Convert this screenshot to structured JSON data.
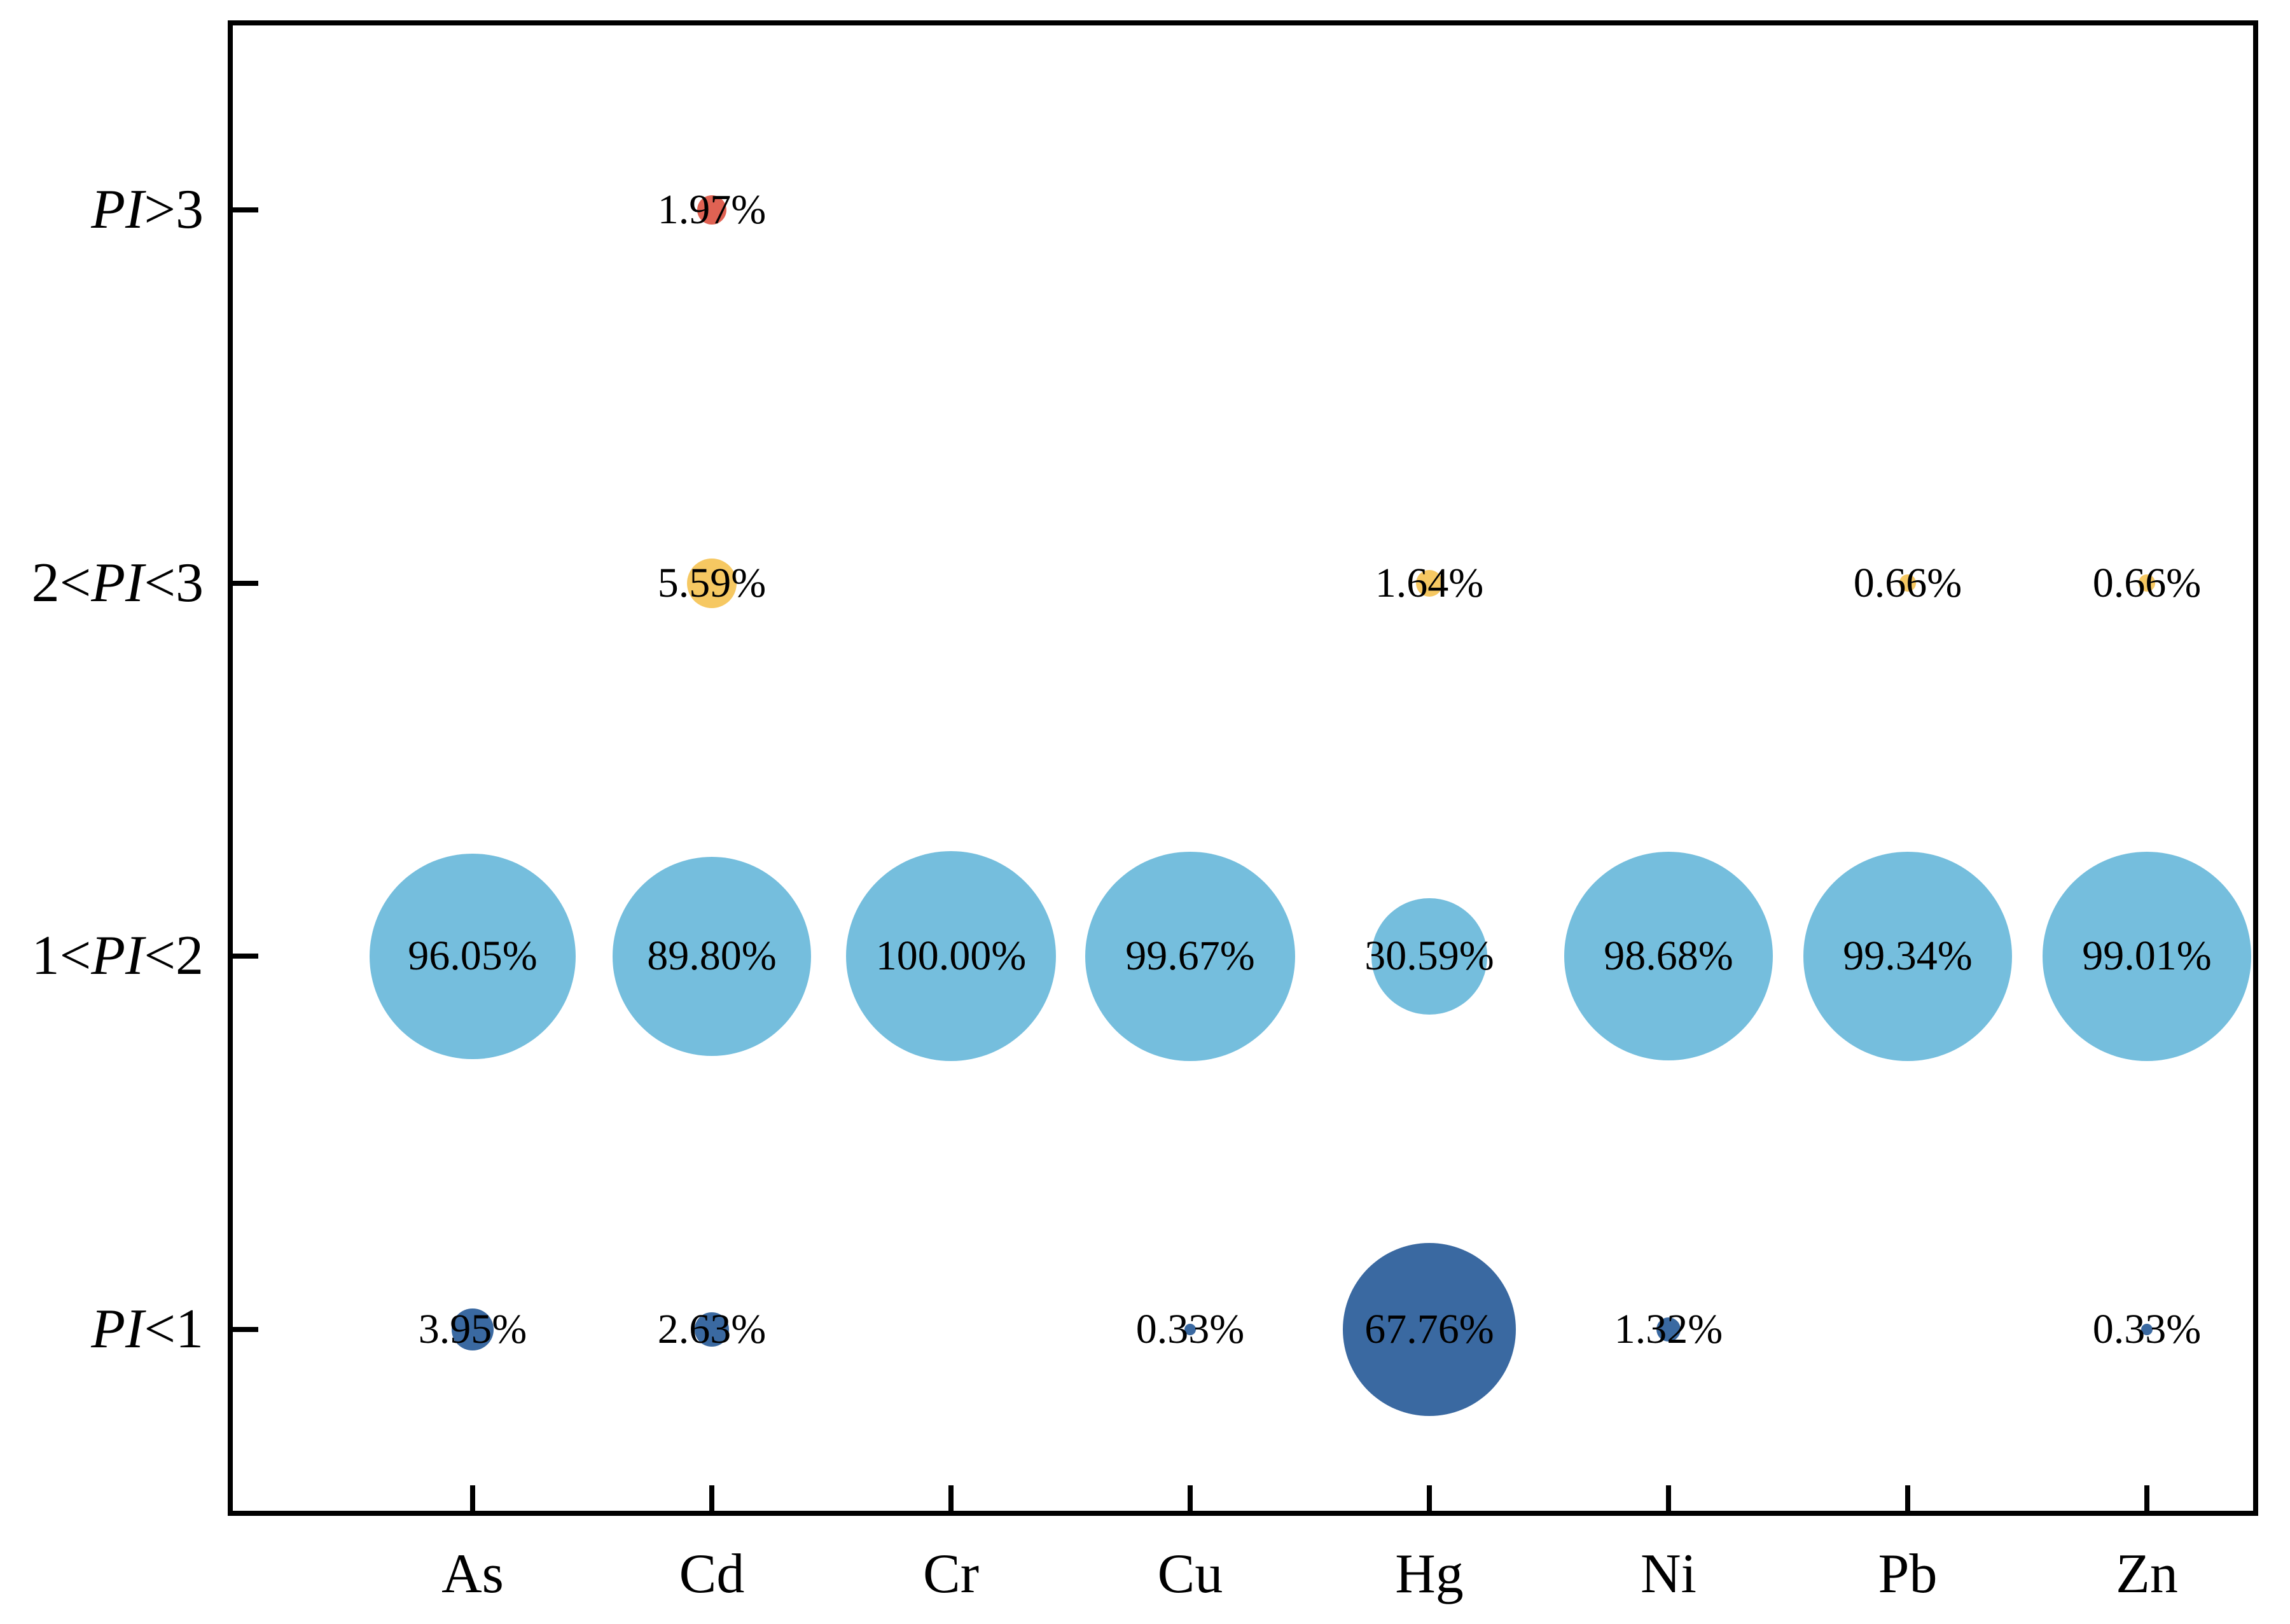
{
  "chart_data": {
    "type": "scatter",
    "subtype": "bubble",
    "title": "",
    "xlabel": "",
    "ylabel": "",
    "x_categories": [
      "As",
      "Cd",
      "Cr",
      "Cu",
      "Hg",
      "Ni",
      "Pb",
      "Zn"
    ],
    "y_categories": [
      "PI<1",
      "1<PI<2",
      "2<PI<3",
      "PI>3"
    ],
    "y_categories_rich": [
      {
        "pre": "",
        "italic": "PI",
        "post": "<1"
      },
      {
        "pre": "1<",
        "italic": "PI",
        "post": "<2"
      },
      {
        "pre": "2<",
        "italic": "PI",
        "post": "<3"
      },
      {
        "pre": "",
        "italic": "PI",
        "post": ">3"
      }
    ],
    "value_unit": "%",
    "value_format": "2-decimal percent",
    "bubble_area_proportional_to": "value",
    "grid": "off",
    "legend": "none",
    "axis_color": "#000000",
    "text_color": "#000000",
    "series": [
      {
        "name": "PI<1",
        "color": "#3a69a1",
        "points": [
          [
            "As",
            3.95
          ],
          [
            "Cd",
            2.63
          ],
          [
            "Cu",
            0.33
          ],
          [
            "Hg",
            67.76
          ],
          [
            "Ni",
            1.32
          ],
          [
            "Zn",
            0.33
          ]
        ]
      },
      {
        "name": "1<PI<2",
        "color": "#75bedd",
        "points": [
          [
            "As",
            96.05
          ],
          [
            "Cd",
            89.8
          ],
          [
            "Cr",
            100.0
          ],
          [
            "Cu",
            99.67
          ],
          [
            "Hg",
            30.59
          ],
          [
            "Ni",
            98.68
          ],
          [
            "Pb",
            99.34
          ],
          [
            "Zn",
            99.01
          ]
        ]
      },
      {
        "name": "2<PI<3",
        "color": "#f6c862",
        "points": [
          [
            "Cd",
            5.59
          ],
          [
            "Hg",
            1.64
          ],
          [
            "Pb",
            0.66
          ],
          [
            "Zn",
            0.66
          ]
        ]
      },
      {
        "name": "PI>3",
        "color": "#e06253",
        "points": [
          [
            "Cd",
            1.97
          ]
        ]
      }
    ]
  }
}
